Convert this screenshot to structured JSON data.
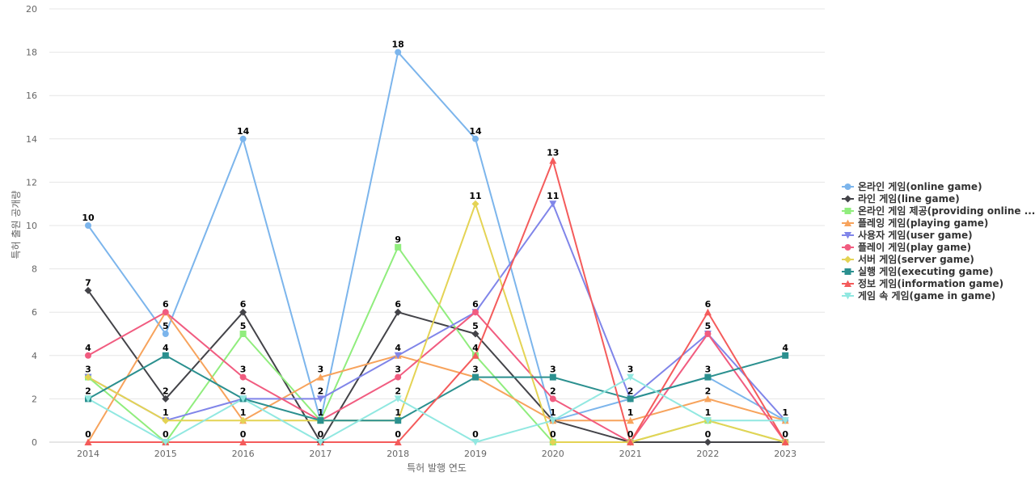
{
  "chart_data": {
    "type": "line",
    "title": "",
    "xlabel": "특허 발행 연도",
    "ylabel": "특허 출원 공개량",
    "ylim": [
      0,
      20
    ],
    "yticks": [
      0,
      2,
      4,
      6,
      8,
      10,
      12,
      14,
      16,
      18,
      20
    ],
    "grid": true,
    "legend_position": "right",
    "categories": [
      "2014",
      "2015",
      "2016",
      "2017",
      "2018",
      "2019",
      "2020",
      "2021",
      "2022",
      "2023"
    ],
    "series": [
      {
        "name": "온라인 게임(online game)",
        "color": "#7cb5ec",
        "marker": "circle",
        "values": [
          10,
          5,
          14,
          1,
          18,
          14,
          1,
          2,
          3,
          1
        ]
      },
      {
        "name": "라인 게임(line game)",
        "color": "#434348",
        "marker": "diamond",
        "values": [
          7,
          2,
          6,
          0,
          6,
          5,
          1,
          0,
          0,
          0
        ]
      },
      {
        "name": "온라인 게임 제공(providing online ...",
        "color": "#90ed7d",
        "marker": "square",
        "values": [
          3,
          0,
          5,
          1,
          9,
          4,
          0,
          0,
          1,
          0
        ]
      },
      {
        "name": "플레잉 게임(playing game)",
        "color": "#f7a35c",
        "marker": "triangle",
        "values": [
          0,
          6,
          1,
          3,
          4,
          3,
          1,
          1,
          2,
          1
        ]
      },
      {
        "name": "사용자 게임(user game)",
        "color": "#8085e9",
        "marker": "triangle-down",
        "values": [
          3,
          1,
          2,
          2,
          4,
          6,
          11,
          2,
          5,
          1
        ]
      },
      {
        "name": "플레이 게임(play game)",
        "color": "#f15c80",
        "marker": "circle",
        "values": [
          4,
          6,
          3,
          1,
          3,
          6,
          2,
          0,
          5,
          0
        ]
      },
      {
        "name": "서버 게임(server game)",
        "color": "#e4d354",
        "marker": "diamond",
        "values": [
          3,
          1,
          1,
          1,
          1,
          11,
          0,
          0,
          1,
          0
        ]
      },
      {
        "name": "실행 게임(executing game)",
        "color": "#2b908f",
        "marker": "square",
        "values": [
          2,
          4,
          2,
          1,
          1,
          3,
          3,
          2,
          3,
          4
        ]
      },
      {
        "name": "정보 게임(information game)",
        "color": "#f45b5b",
        "marker": "triangle",
        "values": [
          0,
          0,
          0,
          0,
          0,
          4,
          13,
          0,
          6,
          0
        ]
      },
      {
        "name": "게임 속 게임(game in game)",
        "color": "#91e8e1",
        "marker": "triangle-down",
        "values": [
          2,
          0,
          2,
          0,
          2,
          0,
          1,
          3,
          1,
          1
        ]
      }
    ],
    "data_labels": [
      {
        "year": "2014",
        "value": 10
      },
      {
        "year": "2014",
        "value": 7
      },
      {
        "year": "2014",
        "value": 4
      },
      {
        "year": "2014",
        "value": 3
      },
      {
        "year": "2014",
        "value": 2
      },
      {
        "year": "2014",
        "value": 0
      },
      {
        "year": "2015",
        "value": 6
      },
      {
        "year": "2015",
        "value": 5
      },
      {
        "year": "2015",
        "value": 4
      },
      {
        "year": "2015",
        "value": 2
      },
      {
        "year": "2015",
        "value": 1
      },
      {
        "year": "2015",
        "value": 0
      },
      {
        "year": "2016",
        "value": 14
      },
      {
        "year": "2016",
        "value": 6
      },
      {
        "year": "2016",
        "value": 5
      },
      {
        "year": "2016",
        "value": 3
      },
      {
        "year": "2016",
        "value": 2
      },
      {
        "year": "2016",
        "value": 1
      },
      {
        "year": "2016",
        "value": 0
      },
      {
        "year": "2017",
        "value": 3
      },
      {
        "year": "2017",
        "value": 2
      },
      {
        "year": "2017",
        "value": 1
      },
      {
        "year": "2017",
        "value": 0
      },
      {
        "year": "2018",
        "value": 18
      },
      {
        "year": "2018",
        "value": 9
      },
      {
        "year": "2018",
        "value": 6
      },
      {
        "year": "2018",
        "value": 4
      },
      {
        "year": "2018",
        "value": 3
      },
      {
        "year": "2018",
        "value": 2
      },
      {
        "year": "2018",
        "value": 1
      },
      {
        "year": "2018",
        "value": 0
      },
      {
        "year": "2019",
        "value": 14
      },
      {
        "year": "2019",
        "value": 11
      },
      {
        "year": "2019",
        "value": 6
      },
      {
        "year": "2019",
        "value": 5
      },
      {
        "year": "2019",
        "value": 4
      },
      {
        "year": "2019",
        "value": 3
      },
      {
        "year": "2019",
        "value": 0
      },
      {
        "year": "2020",
        "value": 13
      },
      {
        "year": "2020",
        "value": 11
      },
      {
        "year": "2020",
        "value": 3
      },
      {
        "year": "2020",
        "value": 2
      },
      {
        "year": "2020",
        "value": 1
      },
      {
        "year": "2020",
        "value": 0
      },
      {
        "year": "2021",
        "value": 3
      },
      {
        "year": "2021",
        "value": 2
      },
      {
        "year": "2021",
        "value": 1
      },
      {
        "year": "2021",
        "value": 0
      },
      {
        "year": "2022",
        "value": 6
      },
      {
        "year": "2022",
        "value": 5
      },
      {
        "year": "2022",
        "value": 3
      },
      {
        "year": "2022",
        "value": 2
      },
      {
        "year": "2022",
        "value": 1
      },
      {
        "year": "2022",
        "value": 0
      },
      {
        "year": "2023",
        "value": 4
      },
      {
        "year": "2023",
        "value": 1
      },
      {
        "year": "2023",
        "value": 0
      }
    ]
  }
}
